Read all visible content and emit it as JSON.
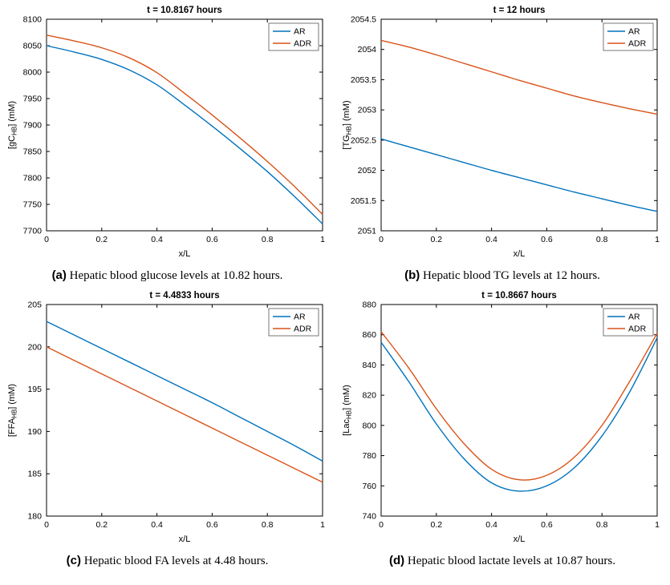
{
  "page": {
    "background": "#ffffff"
  },
  "colors": {
    "ar": "#0072BD",
    "adr": "#D95319",
    "axis": "#000000",
    "legend_border": "#555555"
  },
  "chart_data": [
    {
      "type": "line",
      "title": "t = 10.8167 hours",
      "xlabel": "x/L",
      "ylabel_parts": [
        "[gC",
        "HB",
        "] (mM)"
      ],
      "xlim": [
        0,
        1
      ],
      "ylim": [
        7700,
        8100
      ],
      "xticks": [
        0,
        0.2,
        0.4,
        0.6,
        0.8,
        1
      ],
      "yticks": [
        7700,
        7750,
        7800,
        7850,
        7900,
        7950,
        8000,
        8050,
        8100
      ],
      "legend_position": "top-right",
      "grid": false,
      "x": [
        0,
        0.1,
        0.2,
        0.3,
        0.4,
        0.5,
        0.6,
        0.7,
        0.8,
        0.9,
        1
      ],
      "series": [
        {
          "name": "AR",
          "color": "#0072BD",
          "y": [
            8050,
            8038,
            8024,
            8004,
            7976,
            7938,
            7898,
            7856,
            7812,
            7764,
            7713
          ]
        },
        {
          "name": "ADR",
          "color": "#D95319",
          "y": [
            8070,
            8059,
            8046,
            8027,
            7999,
            7960,
            7919,
            7876,
            7831,
            7783,
            7731
          ]
        }
      ],
      "caption_label": "(a)",
      "caption_text": " Hepatic blood glucose levels at 10.82 hours."
    },
    {
      "type": "line",
      "title": "t = 12 hours",
      "xlabel": "x/L",
      "ylabel_parts": [
        "[TG",
        "HB",
        "] (mM)"
      ],
      "xlim": [
        0,
        1
      ],
      "ylim": [
        2051,
        2054.5
      ],
      "xticks": [
        0,
        0.2,
        0.4,
        0.6,
        0.8,
        1
      ],
      "yticks": [
        2051,
        2051.5,
        2052,
        2052.5,
        2053,
        2053.5,
        2054,
        2054.5
      ],
      "legend_position": "top-right",
      "grid": false,
      "x": [
        0,
        0.1,
        0.2,
        0.3,
        0.4,
        0.5,
        0.6,
        0.7,
        0.8,
        0.9,
        1
      ],
      "series": [
        {
          "name": "AR",
          "color": "#0072BD",
          "y": [
            2052.52,
            2052.39,
            2052.26,
            2052.13,
            2052.0,
            2051.88,
            2051.76,
            2051.64,
            2051.53,
            2051.42,
            2051.32
          ]
        },
        {
          "name": "ADR",
          "color": "#D95319",
          "y": [
            2054.15,
            2054.04,
            2053.91,
            2053.77,
            2053.63,
            2053.49,
            2053.36,
            2053.23,
            2053.12,
            2053.02,
            2052.93
          ]
        }
      ],
      "caption_label": "(b)",
      "caption_text": " Hepatic blood TG levels at 12 hours."
    },
    {
      "type": "line",
      "title": "t = 4.4833 hours",
      "xlabel": "x/L",
      "ylabel_parts": [
        "[FFA",
        "HB",
        "] (mM)"
      ],
      "xlim": [
        0,
        1
      ],
      "ylim": [
        180,
        205
      ],
      "xticks": [
        0,
        0.2,
        0.4,
        0.6,
        0.8,
        1
      ],
      "yticks": [
        180,
        185,
        190,
        195,
        200,
        205
      ],
      "legend_position": "top-right",
      "grid": false,
      "x": [
        0,
        0.1,
        0.2,
        0.3,
        0.4,
        0.5,
        0.6,
        0.7,
        0.8,
        0.9,
        1
      ],
      "series": [
        {
          "name": "AR",
          "color": "#0072BD",
          "y": [
            203.0,
            201.4,
            199.8,
            198.2,
            196.6,
            195.0,
            193.4,
            191.7,
            190.0,
            188.3,
            186.5
          ]
        },
        {
          "name": "ADR",
          "color": "#D95319",
          "y": [
            200.0,
            198.4,
            196.8,
            195.2,
            193.6,
            192.0,
            190.4,
            188.8,
            187.2,
            185.6,
            184.0
          ]
        }
      ],
      "caption_label": "(c)",
      "caption_text": " Hepatic blood FA levels at 4.48 hours."
    },
    {
      "type": "line",
      "title": "t = 10.8667 hours",
      "xlabel": "x/L",
      "ylabel_parts": [
        "[Lac",
        "HB",
        "] (mM)"
      ],
      "xlim": [
        0,
        1
      ],
      "ylim": [
        740,
        880
      ],
      "xticks": [
        0,
        0.2,
        0.4,
        0.6,
        0.8,
        1
      ],
      "yticks": [
        740,
        760,
        780,
        800,
        820,
        840,
        860,
        880
      ],
      "legend_position": "top-right",
      "grid": false,
      "x": [
        0,
        0.1,
        0.2,
        0.3,
        0.4,
        0.5,
        0.6,
        0.7,
        0.8,
        0.9,
        1
      ],
      "series": [
        {
          "name": "AR",
          "color": "#0072BD",
          "y": [
            855,
            829,
            801,
            778,
            762,
            756.5,
            760,
            772,
            793,
            822,
            858
          ]
        },
        {
          "name": "ADR",
          "color": "#D95319",
          "y": [
            862,
            838,
            811,
            788,
            771,
            764,
            767,
            779,
            800,
            829,
            861
          ]
        }
      ],
      "caption_label": "(d)",
      "caption_text": " Hepatic blood lactate levels at 10.87 hours."
    }
  ]
}
